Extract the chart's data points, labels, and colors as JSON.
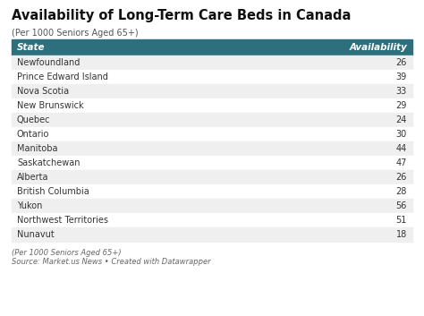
{
  "title": "Availability of Long-Term Care Beds in Canada",
  "subtitle": "(Per 1000 Seniors Aged 65+)",
  "header": [
    "State",
    "Availability"
  ],
  "rows": [
    [
      "Newfoundland",
      "26"
    ],
    [
      "Prince Edward Island",
      "39"
    ],
    [
      "Nova Scotia",
      "33"
    ],
    [
      "New Brunswick",
      "29"
    ],
    [
      "Quebec",
      "24"
    ],
    [
      "Ontario",
      "30"
    ],
    [
      "Manitoba",
      "44"
    ],
    [
      "Saskatchewan",
      "47"
    ],
    [
      "Alberta",
      "26"
    ],
    [
      "British Columbia",
      "28"
    ],
    [
      "Yukon",
      "56"
    ],
    [
      "Northwest Territories",
      "51"
    ],
    [
      "Nunavut",
      "18"
    ]
  ],
  "header_bg": "#2e6f7e",
  "header_text_color": "#ffffff",
  "row_bg_odd": "#efefef",
  "row_bg_even": "#ffffff",
  "text_color": "#333333",
  "footer_line1": "(Per 1000 Seniors Aged 65+)",
  "footer_line2": "Source: Market.us News • Created with Datawrapper",
  "bg_color": "#ffffff",
  "title_fontsize": 10.5,
  "subtitle_fontsize": 7.0,
  "header_fontsize": 7.5,
  "row_fontsize": 7.0,
  "footer_fontsize": 6.0
}
